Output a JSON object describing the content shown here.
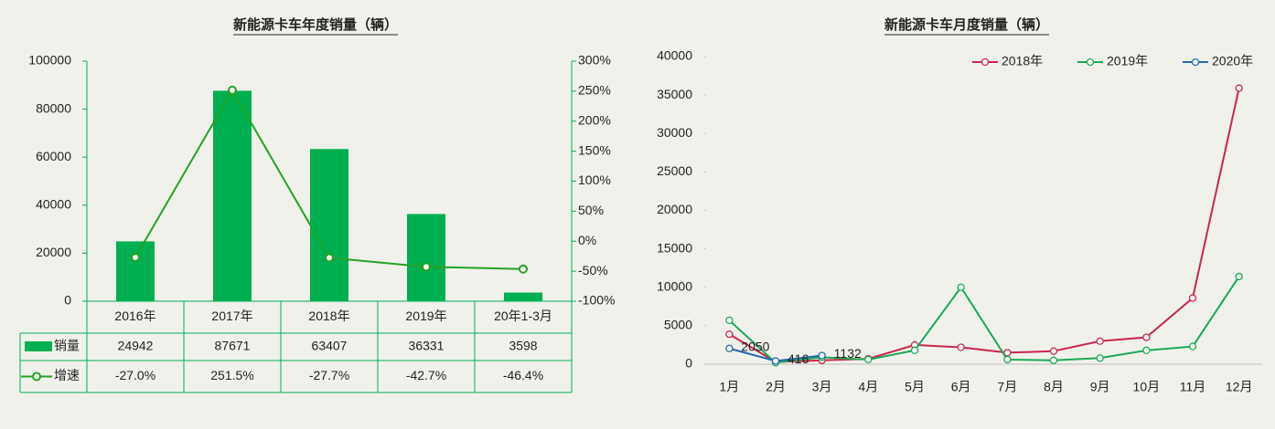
{
  "chart_data": [
    {
      "type": "bar",
      "title": "新能源卡车年度销量（辆）",
      "categories": [
        "2016年",
        "2017年",
        "2018年",
        "2019年",
        "20年1-3月"
      ],
      "series": [
        {
          "name": "销量",
          "type": "bar",
          "color": "#00b050",
          "values": [
            24942,
            87671,
            63407,
            36331,
            3598
          ]
        },
        {
          "name": "增速",
          "type": "line",
          "axis": "y2",
          "color": "#23a223",
          "values": [
            -27.0,
            251.5,
            -27.7,
            -42.7,
            -46.4
          ],
          "value_labels": [
            "-27.0%",
            "251.5%",
            "-27.7%",
            "-42.7%",
            "-46.4%"
          ]
        }
      ],
      "ylim": [
        0,
        100000
      ],
      "yticks": [
        0,
        20000,
        40000,
        60000,
        80000,
        100000
      ],
      "y2lim": [
        -100,
        300
      ],
      "y2ticks": [
        {
          "value": -100,
          "label": "-100%"
        },
        {
          "value": -50,
          "label": "-50%"
        },
        {
          "value": 0,
          "label": "0%"
        },
        {
          "value": 50,
          "label": "50%"
        },
        {
          "value": 100,
          "label": "100%"
        },
        {
          "value": 150,
          "label": "150%"
        },
        {
          "value": 200,
          "label": "200%"
        },
        {
          "value": 250,
          "label": "250%"
        },
        {
          "value": 300,
          "label": "300%"
        }
      ],
      "data_table": true
    },
    {
      "type": "line",
      "title": "新能源卡车月度销量（辆）",
      "categories": [
        "1月",
        "2月",
        "3月",
        "4月",
        "5月",
        "6月",
        "7月",
        "8月",
        "9月",
        "10月",
        "11月",
        "12月"
      ],
      "series": [
        {
          "name": "2018年",
          "color": "#c9264b",
          "values": [
            3900,
            300,
            500,
            700,
            2500,
            2200,
            1500,
            1700,
            3000,
            3500,
            8600,
            35900
          ]
        },
        {
          "name": "2019年",
          "color": "#1aaa55",
          "values": [
            5700,
            200,
            900,
            600,
            1800,
            10000,
            600,
            500,
            800,
            1800,
            2300,
            11400
          ]
        },
        {
          "name": "2020年",
          "color": "#2168b0",
          "values": [
            2050,
            416,
            1132,
            null,
            null,
            null,
            null,
            null,
            null,
            null,
            null,
            null
          ],
          "data_labels": true
        }
      ],
      "ylim": [
        0,
        40000
      ],
      "yticks": [
        0,
        5000,
        10000,
        15000,
        20000,
        25000,
        30000,
        35000,
        40000
      ],
      "legend": "top-right"
    }
  ]
}
